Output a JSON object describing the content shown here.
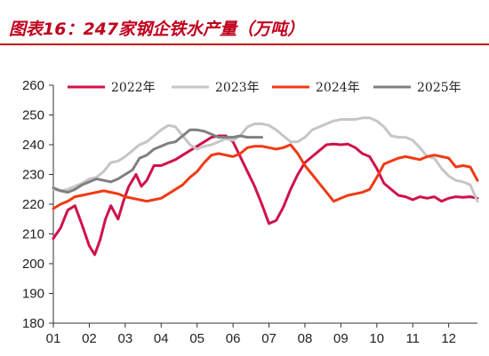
{
  "title": "图表16：247家钢企铁水产量（万吨）",
  "chart_data": {
    "type": "line",
    "title": "图表16：247家钢企铁水产量（万吨）",
    "xlabel": "",
    "ylabel": "",
    "ylim": [
      180,
      260
    ],
    "yticks": [
      180,
      190,
      200,
      210,
      220,
      230,
      240,
      250,
      260
    ],
    "xticks": [
      "01",
      "02",
      "03",
      "04",
      "05",
      "06",
      "07",
      "08",
      "09",
      "10",
      "11",
      "12"
    ],
    "xlim": [
      1,
      12.8
    ],
    "grid": false,
    "legend": "top",
    "series": [
      {
        "name": "2022年",
        "color": "#d0114a",
        "x": [
          1,
          1.2,
          1.4,
          1.6,
          1.8,
          2.0,
          2.15,
          2.3,
          2.45,
          2.6,
          2.8,
          2.95,
          3.1,
          3.3,
          3.45,
          3.6,
          3.8,
          4.0,
          4.2,
          4.4,
          4.6,
          4.8,
          5.0,
          5.2,
          5.4,
          5.6,
          5.8,
          6.0,
          6.2,
          6.4,
          6.6,
          6.8,
          7.0,
          7.2,
          7.4,
          7.6,
          7.8,
          8.0,
          8.2,
          8.4,
          8.6,
          8.8,
          9.0,
          9.2,
          9.4,
          9.6,
          9.8,
          10.0,
          10.2,
          10.4,
          10.6,
          10.8,
          11.0,
          11.2,
          11.4,
          11.6,
          11.8,
          12.0,
          12.2,
          12.4,
          12.6,
          12.8
        ],
        "values": [
          208.5,
          212,
          218,
          219.5,
          213,
          206,
          203,
          208,
          215,
          219.5,
          215,
          221,
          226,
          230,
          226,
          228,
          233,
          233,
          234,
          235,
          236.5,
          238,
          239.5,
          241,
          242.5,
          243,
          243,
          241,
          236,
          231,
          226,
          220,
          213.5,
          214.5,
          219,
          225,
          230,
          234,
          236,
          238,
          240,
          240.2,
          240,
          240.2,
          239,
          237,
          236,
          232,
          227,
          225,
          223,
          222.5,
          221.5,
          222.5,
          222,
          222.5,
          221,
          222,
          222.5,
          222.3,
          222.5,
          222
        ]
      },
      {
        "name": "2023年",
        "color": "#c6c6c6",
        "x": [
          1,
          1.2,
          1.4,
          1.6,
          1.8,
          2.0,
          2.2,
          2.4,
          2.6,
          2.8,
          3.0,
          3.2,
          3.4,
          3.6,
          3.8,
          4.0,
          4.2,
          4.4,
          4.6,
          4.8,
          5.0,
          5.2,
          5.4,
          5.6,
          5.8,
          6.0,
          6.2,
          6.4,
          6.6,
          6.8,
          7.0,
          7.2,
          7.4,
          7.6,
          7.8,
          8.0,
          8.2,
          8.4,
          8.6,
          8.8,
          9.0,
          9.2,
          9.4,
          9.6,
          9.8,
          10.0,
          10.2,
          10.4,
          10.6,
          10.8,
          11.0,
          11.2,
          11.4,
          11.6,
          11.8,
          12.0,
          12.2,
          12.4,
          12.6,
          12.8
        ],
        "values": [
          225,
          224.5,
          225,
          226,
          227,
          228.5,
          229,
          231,
          234,
          234.5,
          236,
          238,
          240,
          241,
          243,
          245,
          246.5,
          246,
          243,
          240,
          238.5,
          239.5,
          240,
          241,
          242,
          241.5,
          243,
          246,
          247,
          247,
          246.5,
          245,
          243,
          241,
          241,
          242.5,
          245,
          246,
          247,
          248,
          248.5,
          248.5,
          248.5,
          249,
          249,
          248,
          246,
          243,
          242.5,
          242.5,
          241.5,
          239,
          236,
          235.5,
          232,
          229.5,
          228,
          227.5,
          226.5,
          221
        ]
      },
      {
        "name": "2024年",
        "color": "#ef3b14",
        "x": [
          1,
          1.2,
          1.4,
          1.6,
          1.8,
          2.0,
          2.2,
          2.4,
          2.6,
          2.8,
          3.0,
          3.2,
          3.4,
          3.6,
          3.8,
          4.0,
          4.2,
          4.4,
          4.6,
          4.8,
          5.0,
          5.2,
          5.4,
          5.6,
          5.8,
          6.0,
          6.2,
          6.4,
          6.6,
          6.8,
          7.0,
          7.2,
          7.4,
          7.6,
          7.8,
          8.0,
          8.2,
          8.4,
          8.6,
          8.8,
          9.0,
          9.2,
          9.4,
          9.6,
          9.8,
          10.0,
          10.2,
          10.4,
          10.6,
          10.8,
          11.0,
          11.2,
          11.4,
          11.6,
          11.8,
          12.0,
          12.2,
          12.4,
          12.6,
          12.8
        ],
        "values": [
          218.5,
          220,
          221,
          222.5,
          223,
          223.5,
          224,
          224.5,
          224,
          223.5,
          222.5,
          222,
          221.5,
          221,
          221.5,
          222,
          223.5,
          225,
          226.5,
          229,
          231,
          234,
          236.5,
          237,
          236.5,
          236,
          237,
          239,
          239.5,
          239.5,
          239,
          238.5,
          239,
          240,
          237,
          233,
          230,
          227,
          224,
          221,
          222,
          223,
          223.5,
          224,
          225,
          229,
          233.5,
          234.5,
          235.5,
          236,
          235.5,
          235,
          236,
          236.5,
          236,
          235.5,
          232.5,
          233,
          232.5,
          228
        ]
      },
      {
        "name": "2025年",
        "color": "#808080",
        "x": [
          1,
          1.2,
          1.4,
          1.6,
          1.8,
          2.0,
          2.2,
          2.4,
          2.6,
          2.8,
          3.0,
          3.2,
          3.4,
          3.6,
          3.8,
          4.0,
          4.2,
          4.4,
          4.6,
          4.8,
          5.0,
          5.2,
          5.4,
          5.6,
          5.8,
          6.0,
          6.2,
          6.4,
          6.6,
          6.8
        ],
        "values": [
          225.5,
          224.5,
          224,
          225,
          226.5,
          227.5,
          228.5,
          228,
          227.5,
          228.5,
          230,
          231.5,
          235.5,
          236.5,
          238.5,
          239.5,
          240.5,
          241,
          243,
          245,
          245,
          244.5,
          243.5,
          242.5,
          242.5,
          242.5,
          243,
          242.5,
          242.5,
          242.5
        ]
      }
    ]
  }
}
